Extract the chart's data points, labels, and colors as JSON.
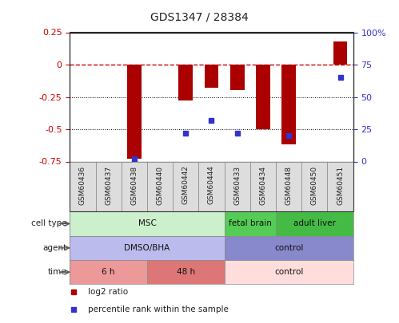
{
  "title": "GDS1347 / 28384",
  "samples": [
    "GSM60436",
    "GSM60437",
    "GSM60438",
    "GSM60440",
    "GSM60442",
    "GSM60444",
    "GSM60433",
    "GSM60434",
    "GSM60448",
    "GSM60450",
    "GSM60451"
  ],
  "log2_ratio": [
    0.0,
    0.0,
    -0.73,
    0.0,
    -0.28,
    -0.18,
    -0.2,
    -0.5,
    -0.62,
    0.0,
    0.18
  ],
  "percentile_rank": [
    null,
    null,
    2,
    null,
    22,
    32,
    22,
    null,
    20,
    null,
    65
  ],
  "ylim_left": [
    -0.75,
    0.25
  ],
  "ylim_right": [
    0,
    100
  ],
  "yticks_left": [
    -0.75,
    -0.5,
    -0.25,
    0.0,
    0.25
  ],
  "yticks_right": [
    0,
    25,
    50,
    75,
    100
  ],
  "ytick_labels_left": [
    "-0.75",
    "-0.5",
    "-0.25",
    "0",
    "0.25"
  ],
  "ytick_labels_right": [
    "0",
    "25",
    "50",
    "75",
    "100%"
  ],
  "bar_color": "#aa0000",
  "dot_color": "#3333cc",
  "hline_color": "#cc0000",
  "grid_color": "#000000",
  "cell_type_groups": [
    {
      "label": "MSC",
      "start": 0,
      "end": 5,
      "color": "#ccf0cc"
    },
    {
      "label": "fetal brain",
      "start": 6,
      "end": 7,
      "color": "#55cc55"
    },
    {
      "label": "adult liver",
      "start": 8,
      "end": 10,
      "color": "#44bb44"
    }
  ],
  "agent_groups": [
    {
      "label": "DMSO/BHA",
      "start": 0,
      "end": 5,
      "color": "#bbbbee"
    },
    {
      "label": "control",
      "start": 6,
      "end": 10,
      "color": "#8888cc"
    }
  ],
  "time_groups": [
    {
      "label": "6 h",
      "start": 0,
      "end": 2,
      "color": "#ee9999"
    },
    {
      "label": "48 h",
      "start": 3,
      "end": 5,
      "color": "#dd7777"
    },
    {
      "label": "control",
      "start": 6,
      "end": 10,
      "color": "#ffdddd"
    }
  ],
  "row_labels": [
    "cell type",
    "agent",
    "time"
  ],
  "legend_items": [
    {
      "color": "#aa0000",
      "label": "log2 ratio"
    },
    {
      "color": "#3333cc",
      "label": "percentile rank within the sample"
    }
  ],
  "background_color": "#ffffff",
  "tick_label_color_left": "#cc0000",
  "tick_label_color_right": "#3333cc",
  "sample_box_color": "#dddddd",
  "sample_box_edge": "#888888"
}
